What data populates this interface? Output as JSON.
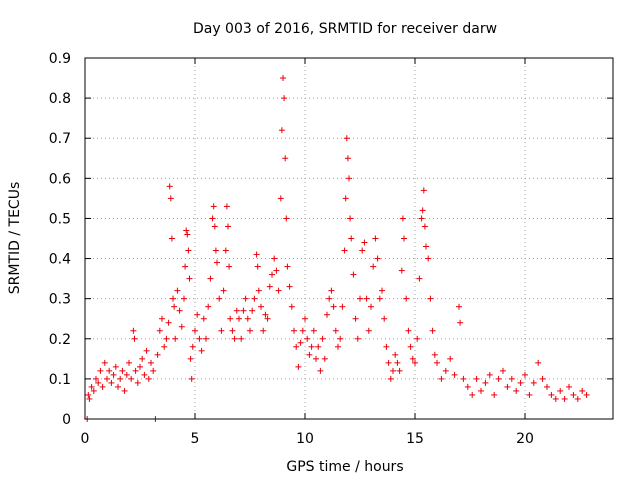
{
  "chart_data": {
    "type": "scatter",
    "title": "Day 003 of 2016, SRMTID for receiver darw",
    "xlabel": "GPS time / hours",
    "ylabel": "SRMTID / TECUs",
    "xlim": [
      0,
      24
    ],
    "ylim": [
      0,
      0.9
    ],
    "xticks": [
      0,
      5,
      10,
      15,
      20
    ],
    "yticks": [
      0,
      0.1,
      0.2,
      0.3,
      0.4,
      0.5,
      0.6,
      0.7,
      0.8,
      0.9
    ],
    "marker": "+",
    "series_color": "#e8000b",
    "grid": true,
    "series": [
      {
        "name": "SRMTID",
        "points": [
          [
            0.1,
            0.0
          ],
          [
            0.15,
            0.06
          ],
          [
            0.2,
            0.05
          ],
          [
            0.3,
            0.08
          ],
          [
            0.4,
            0.07
          ],
          [
            0.5,
            0.1
          ],
          [
            0.6,
            0.09
          ],
          [
            0.7,
            0.12
          ],
          [
            0.8,
            0.08
          ],
          [
            0.9,
            0.14
          ],
          [
            1.0,
            0.1
          ],
          [
            1.1,
            0.12
          ],
          [
            1.2,
            0.09
          ],
          [
            1.3,
            0.11
          ],
          [
            1.4,
            0.13
          ],
          [
            1.5,
            0.08
          ],
          [
            1.6,
            0.1
          ],
          [
            1.7,
            0.12
          ],
          [
            1.8,
            0.07
          ],
          [
            1.9,
            0.11
          ],
          [
            2.0,
            0.14
          ],
          [
            2.1,
            0.1
          ],
          [
            2.2,
            0.22
          ],
          [
            2.25,
            0.2
          ],
          [
            2.3,
            0.12
          ],
          [
            2.4,
            0.09
          ],
          [
            2.5,
            0.13
          ],
          [
            2.6,
            0.15
          ],
          [
            2.7,
            0.11
          ],
          [
            2.8,
            0.17
          ],
          [
            2.9,
            0.1
          ],
          [
            3.0,
            0.14
          ],
          [
            3.1,
            0.12
          ],
          [
            3.2,
            0.0
          ],
          [
            3.3,
            0.16
          ],
          [
            3.4,
            0.22
          ],
          [
            3.5,
            0.25
          ],
          [
            3.6,
            0.18
          ],
          [
            3.7,
            0.2
          ],
          [
            3.8,
            0.24
          ],
          [
            3.85,
            0.58
          ],
          [
            3.9,
            0.55
          ],
          [
            3.95,
            0.45
          ],
          [
            4.0,
            0.3
          ],
          [
            4.05,
            0.28
          ],
          [
            4.1,
            0.2
          ],
          [
            4.2,
            0.32
          ],
          [
            4.3,
            0.27
          ],
          [
            4.4,
            0.23
          ],
          [
            4.5,
            0.3
          ],
          [
            4.55,
            0.38
          ],
          [
            4.6,
            0.47
          ],
          [
            4.65,
            0.46
          ],
          [
            4.7,
            0.42
          ],
          [
            4.75,
            0.35
          ],
          [
            4.8,
            0.15
          ],
          [
            4.85,
            0.1
          ],
          [
            4.9,
            0.18
          ],
          [
            5.0,
            0.22
          ],
          [
            5.1,
            0.26
          ],
          [
            5.2,
            0.2
          ],
          [
            5.3,
            0.17
          ],
          [
            5.4,
            0.25
          ],
          [
            5.5,
            0.2
          ],
          [
            5.6,
            0.28
          ],
          [
            5.7,
            0.35
          ],
          [
            5.8,
            0.5
          ],
          [
            5.85,
            0.53
          ],
          [
            5.9,
            0.48
          ],
          [
            5.95,
            0.42
          ],
          [
            6.0,
            0.39
          ],
          [
            6.1,
            0.3
          ],
          [
            6.2,
            0.22
          ],
          [
            6.3,
            0.32
          ],
          [
            6.4,
            0.42
          ],
          [
            6.45,
            0.53
          ],
          [
            6.5,
            0.48
          ],
          [
            6.55,
            0.38
          ],
          [
            6.6,
            0.25
          ],
          [
            6.7,
            0.22
          ],
          [
            6.8,
            0.2
          ],
          [
            6.9,
            0.27
          ],
          [
            7.0,
            0.25
          ],
          [
            7.1,
            0.2
          ],
          [
            7.2,
            0.27
          ],
          [
            7.3,
            0.3
          ],
          [
            7.4,
            0.25
          ],
          [
            7.5,
            0.22
          ],
          [
            7.6,
            0.27
          ],
          [
            7.7,
            0.3
          ],
          [
            7.8,
            0.41
          ],
          [
            7.85,
            0.38
          ],
          [
            7.9,
            0.32
          ],
          [
            8.0,
            0.28
          ],
          [
            8.1,
            0.22
          ],
          [
            8.2,
            0.26
          ],
          [
            8.3,
            0.25
          ],
          [
            8.4,
            0.33
          ],
          [
            8.5,
            0.36
          ],
          [
            8.6,
            0.4
          ],
          [
            8.7,
            0.37
          ],
          [
            8.8,
            0.32
          ],
          [
            8.9,
            0.55
          ],
          [
            8.95,
            0.72
          ],
          [
            9.0,
            0.85
          ],
          [
            9.05,
            0.8
          ],
          [
            9.1,
            0.65
          ],
          [
            9.15,
            0.5
          ],
          [
            9.2,
            0.38
          ],
          [
            9.3,
            0.33
          ],
          [
            9.4,
            0.28
          ],
          [
            9.5,
            0.22
          ],
          [
            9.6,
            0.18
          ],
          [
            9.7,
            0.13
          ],
          [
            9.8,
            0.19
          ],
          [
            9.9,
            0.22
          ],
          [
            10.0,
            0.25
          ],
          [
            10.1,
            0.2
          ],
          [
            10.2,
            0.16
          ],
          [
            10.3,
            0.18
          ],
          [
            10.4,
            0.22
          ],
          [
            10.5,
            0.15
          ],
          [
            10.6,
            0.18
          ],
          [
            10.7,
            0.12
          ],
          [
            10.8,
            0.2
          ],
          [
            10.9,
            0.15
          ],
          [
            11.0,
            0.26
          ],
          [
            11.1,
            0.3
          ],
          [
            11.2,
            0.32
          ],
          [
            11.3,
            0.28
          ],
          [
            11.4,
            0.22
          ],
          [
            11.5,
            0.18
          ],
          [
            11.6,
            0.2
          ],
          [
            11.7,
            0.28
          ],
          [
            11.8,
            0.42
          ],
          [
            11.85,
            0.55
          ],
          [
            11.9,
            0.7
          ],
          [
            11.95,
            0.65
          ],
          [
            12.0,
            0.6
          ],
          [
            12.05,
            0.5
          ],
          [
            12.1,
            0.45
          ],
          [
            12.2,
            0.36
          ],
          [
            12.3,
            0.25
          ],
          [
            12.4,
            0.2
          ],
          [
            12.5,
            0.3
          ],
          [
            12.6,
            0.42
          ],
          [
            12.7,
            0.44
          ],
          [
            12.8,
            0.3
          ],
          [
            12.9,
            0.22
          ],
          [
            13.0,
            0.28
          ],
          [
            13.1,
            0.38
          ],
          [
            13.2,
            0.45
          ],
          [
            13.3,
            0.4
          ],
          [
            13.4,
            0.3
          ],
          [
            13.5,
            0.32
          ],
          [
            13.6,
            0.25
          ],
          [
            13.7,
            0.18
          ],
          [
            13.8,
            0.14
          ],
          [
            13.9,
            0.1
          ],
          [
            14.0,
            0.12
          ],
          [
            14.1,
            0.16
          ],
          [
            14.2,
            0.14
          ],
          [
            14.3,
            0.12
          ],
          [
            14.4,
            0.37
          ],
          [
            14.45,
            0.5
          ],
          [
            14.5,
            0.45
          ],
          [
            14.6,
            0.3
          ],
          [
            14.7,
            0.22
          ],
          [
            14.8,
            0.18
          ],
          [
            14.9,
            0.15
          ],
          [
            15.0,
            0.14
          ],
          [
            15.1,
            0.2
          ],
          [
            15.2,
            0.35
          ],
          [
            15.3,
            0.5
          ],
          [
            15.35,
            0.52
          ],
          [
            15.4,
            0.57
          ],
          [
            15.45,
            0.48
          ],
          [
            15.5,
            0.43
          ],
          [
            15.6,
            0.4
          ],
          [
            15.7,
            0.3
          ],
          [
            15.8,
            0.22
          ],
          [
            15.9,
            0.16
          ],
          [
            16.0,
            0.14
          ],
          [
            16.2,
            0.1
          ],
          [
            16.4,
            0.12
          ],
          [
            16.6,
            0.15
          ],
          [
            16.8,
            0.11
          ],
          [
            17.0,
            0.28
          ],
          [
            17.05,
            0.24
          ],
          [
            17.2,
            0.1
          ],
          [
            17.4,
            0.08
          ],
          [
            17.6,
            0.06
          ],
          [
            17.8,
            0.1
          ],
          [
            18.0,
            0.07
          ],
          [
            18.2,
            0.09
          ],
          [
            18.4,
            0.11
          ],
          [
            18.6,
            0.06
          ],
          [
            18.8,
            0.1
          ],
          [
            19.0,
            0.12
          ],
          [
            19.2,
            0.08
          ],
          [
            19.4,
            0.1
          ],
          [
            19.6,
            0.07
          ],
          [
            19.8,
            0.09
          ],
          [
            20.0,
            0.11
          ],
          [
            20.2,
            0.06
          ],
          [
            20.4,
            0.09
          ],
          [
            20.6,
            0.14
          ],
          [
            20.8,
            0.1
          ],
          [
            21.0,
            0.08
          ],
          [
            21.2,
            0.06
          ],
          [
            21.4,
            0.05
          ],
          [
            21.6,
            0.07
          ],
          [
            21.8,
            0.05
          ],
          [
            22.0,
            0.08
          ],
          [
            22.2,
            0.06
          ],
          [
            22.4,
            0.05
          ],
          [
            22.6,
            0.07
          ],
          [
            22.8,
            0.06
          ]
        ]
      }
    ]
  }
}
